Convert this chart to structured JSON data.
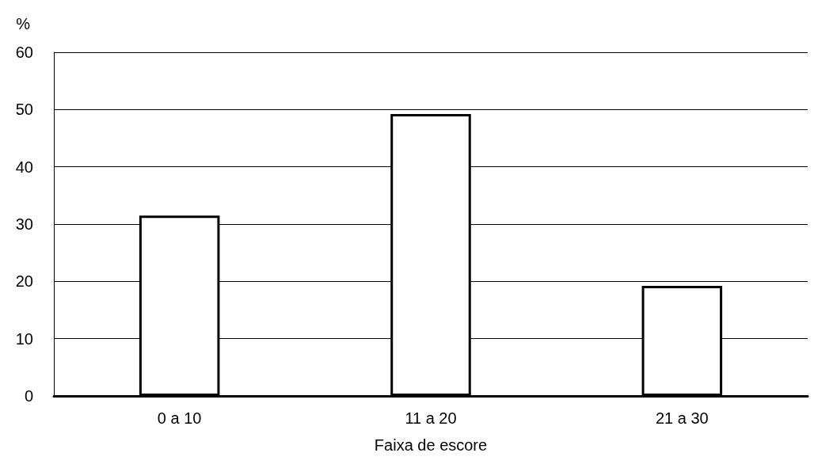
{
  "chart_data": {
    "type": "bar",
    "xlabel": "Faixa de escore",
    "ylabel": "%",
    "categories": [
      "0 a 10",
      "11 a 20",
      "21 a 30"
    ],
    "values": [
      31.5,
      49.2,
      19.2
    ],
    "color": "#ffffff",
    "ylim": [
      0,
      60
    ],
    "yticks": [
      0,
      10,
      20,
      30,
      40,
      50,
      60
    ],
    "grid": "y"
  }
}
